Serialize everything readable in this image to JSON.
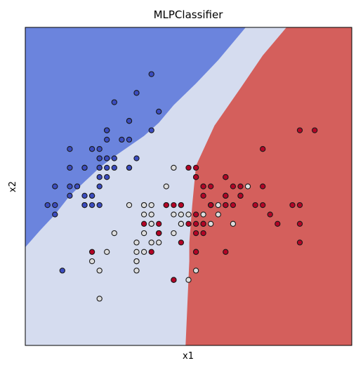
{
  "chart_data": {
    "type": "scatter",
    "title": "MLPClassifier",
    "xlabel": "x1",
    "ylabel": "x2",
    "x_ticks": [],
    "y_ticks": [],
    "xlim": [
      4.0,
      8.4
    ],
    "ylim": [
      1.5,
      4.9
    ],
    "grid": false,
    "decision_regions": [
      {
        "class": 0,
        "color": "#6b84dd",
        "polygon": [
          [
            4.0,
            2.55
          ],
          [
            4.2,
            2.73
          ],
          [
            4.4,
            2.9
          ],
          [
            4.6,
            3.1
          ],
          [
            4.8,
            3.25
          ],
          [
            5.0,
            3.4
          ],
          [
            5.2,
            3.52
          ],
          [
            5.4,
            3.63
          ],
          [
            5.6,
            3.74
          ],
          [
            5.8,
            3.88
          ],
          [
            6.0,
            4.07
          ],
          [
            6.3,
            4.3
          ],
          [
            6.6,
            4.55
          ],
          [
            6.97,
            4.9
          ],
          [
            4.0,
            4.9
          ]
        ]
      },
      {
        "class": 2,
        "color": "#d45f5c",
        "polygon": [
          [
            8.4,
            1.5
          ],
          [
            6.16,
            1.5
          ],
          [
            6.21,
            2.4
          ],
          [
            6.21,
            2.6
          ],
          [
            6.25,
            3.0
          ],
          [
            6.3,
            3.42
          ],
          [
            6.55,
            3.85
          ],
          [
            6.9,
            4.25
          ],
          [
            7.2,
            4.6
          ],
          [
            7.52,
            4.9
          ],
          [
            8.4,
            4.9
          ]
        ]
      },
      {
        "class": 1,
        "color": "#d5dcef",
        "fill": "background"
      }
    ],
    "series": [
      {
        "class": 0,
        "color": "#3b4cc0",
        "points": [
          [
            5.1,
            3.5
          ],
          [
            4.9,
            3.0
          ],
          [
            4.7,
            3.2
          ],
          [
            4.6,
            3.1
          ],
          [
            5.0,
            3.6
          ],
          [
            5.4,
            3.9
          ],
          [
            4.6,
            3.4
          ],
          [
            5.0,
            3.4
          ],
          [
            4.4,
            2.9
          ],
          [
            4.9,
            3.1
          ],
          [
            5.4,
            3.7
          ],
          [
            4.8,
            3.4
          ],
          [
            4.8,
            3.0
          ],
          [
            4.3,
            3.0
          ],
          [
            5.8,
            4.0
          ],
          [
            5.7,
            4.4
          ],
          [
            5.4,
            3.9
          ],
          [
            5.1,
            3.5
          ],
          [
            5.7,
            3.8
          ],
          [
            5.1,
            3.8
          ],
          [
            5.4,
            3.4
          ],
          [
            5.1,
            3.7
          ],
          [
            4.6,
            3.6
          ],
          [
            5.1,
            3.3
          ],
          [
            4.8,
            3.4
          ],
          [
            5.0,
            3.0
          ],
          [
            5.0,
            3.4
          ],
          [
            5.2,
            3.5
          ],
          [
            5.2,
            3.4
          ],
          [
            4.7,
            3.2
          ],
          [
            4.8,
            3.1
          ],
          [
            5.4,
            3.4
          ],
          [
            5.2,
            4.1
          ],
          [
            5.5,
            4.2
          ],
          [
            4.9,
            3.1
          ],
          [
            5.0,
            3.2
          ],
          [
            5.5,
            3.5
          ],
          [
            4.9,
            3.6
          ],
          [
            4.4,
            3.0
          ],
          [
            5.1,
            3.4
          ],
          [
            5.0,
            3.5
          ],
          [
            4.5,
            2.3
          ],
          [
            4.4,
            3.2
          ],
          [
            5.0,
            3.5
          ],
          [
            5.1,
            3.8
          ],
          [
            4.8,
            3.0
          ],
          [
            5.1,
            3.8
          ],
          [
            4.6,
            3.2
          ],
          [
            5.3,
            3.7
          ],
          [
            5.0,
            3.3
          ]
        ]
      },
      {
        "class": 1,
        "color": "#dddddd",
        "points": [
          [
            7.0,
            3.2
          ],
          [
            6.4,
            3.2
          ],
          [
            6.9,
            3.1
          ],
          [
            5.5,
            2.3
          ],
          [
            6.5,
            2.8
          ],
          [
            5.7,
            2.8
          ],
          [
            6.3,
            3.3
          ],
          [
            4.9,
            2.4
          ],
          [
            6.6,
            2.9
          ],
          [
            5.2,
            2.7
          ],
          [
            5.0,
            2.0
          ],
          [
            5.9,
            3.0
          ],
          [
            6.0,
            2.2
          ],
          [
            6.1,
            2.9
          ],
          [
            5.6,
            2.9
          ],
          [
            6.7,
            3.1
          ],
          [
            5.6,
            3.0
          ],
          [
            5.8,
            2.7
          ],
          [
            6.2,
            2.2
          ],
          [
            5.6,
            2.5
          ],
          [
            5.9,
            3.2
          ],
          [
            6.1,
            2.8
          ],
          [
            6.3,
            2.5
          ],
          [
            6.1,
            2.8
          ],
          [
            6.4,
            2.9
          ],
          [
            6.6,
            3.0
          ],
          [
            6.8,
            2.8
          ],
          [
            6.7,
            3.0
          ],
          [
            6.0,
            2.9
          ],
          [
            5.7,
            2.6
          ],
          [
            5.5,
            2.4
          ],
          [
            5.5,
            2.4
          ],
          [
            5.8,
            2.7
          ],
          [
            6.0,
            2.7
          ],
          [
            5.4,
            3.0
          ],
          [
            6.0,
            3.4
          ],
          [
            6.7,
            3.1
          ],
          [
            6.3,
            2.3
          ],
          [
            5.6,
            3.0
          ],
          [
            5.5,
            2.5
          ],
          [
            5.5,
            2.6
          ],
          [
            6.1,
            3.0
          ],
          [
            5.8,
            2.6
          ],
          [
            5.0,
            2.3
          ],
          [
            5.6,
            2.7
          ],
          [
            5.7,
            3.0
          ],
          [
            5.7,
            2.9
          ],
          [
            6.2,
            2.9
          ],
          [
            5.1,
            2.5
          ],
          [
            5.7,
            2.8
          ]
        ]
      },
      {
        "class": 2,
        "color": "#b40426",
        "points": [
          [
            6.3,
            3.3
          ],
          [
            5.8,
            2.7
          ],
          [
            7.1,
            3.0
          ],
          [
            6.3,
            2.9
          ],
          [
            6.5,
            3.0
          ],
          [
            7.6,
            3.0
          ],
          [
            4.9,
            2.5
          ],
          [
            7.3,
            2.9
          ],
          [
            6.7,
            2.5
          ],
          [
            7.2,
            3.6
          ],
          [
            6.5,
            3.2
          ],
          [
            6.4,
            2.7
          ],
          [
            6.8,
            3.0
          ],
          [
            5.7,
            2.5
          ],
          [
            5.8,
            2.8
          ],
          [
            6.4,
            3.2
          ],
          [
            6.5,
            3.0
          ],
          [
            7.7,
            3.8
          ],
          [
            7.7,
            2.6
          ],
          [
            6.0,
            2.2
          ],
          [
            6.9,
            3.2
          ],
          [
            5.6,
            2.8
          ],
          [
            7.7,
            2.8
          ],
          [
            6.3,
            2.7
          ],
          [
            6.7,
            3.3
          ],
          [
            7.2,
            3.2
          ],
          [
            6.2,
            2.8
          ],
          [
            6.1,
            3.0
          ],
          [
            6.4,
            2.8
          ],
          [
            7.2,
            3.0
          ],
          [
            7.4,
            2.8
          ],
          [
            7.9,
            3.8
          ],
          [
            6.4,
            2.8
          ],
          [
            6.3,
            2.8
          ],
          [
            6.1,
            2.6
          ],
          [
            7.7,
            3.0
          ],
          [
            6.3,
            3.4
          ],
          [
            6.4,
            3.1
          ],
          [
            6.0,
            3.0
          ],
          [
            6.9,
            3.1
          ],
          [
            6.7,
            3.1
          ],
          [
            6.9,
            3.1
          ],
          [
            5.8,
            2.7
          ],
          [
            6.8,
            3.2
          ],
          [
            6.7,
            3.3
          ],
          [
            6.7,
            3.0
          ],
          [
            6.3,
            2.5
          ],
          [
            6.5,
            3.0
          ],
          [
            6.2,
            3.4
          ],
          [
            5.9,
            3.0
          ]
        ]
      }
    ]
  }
}
